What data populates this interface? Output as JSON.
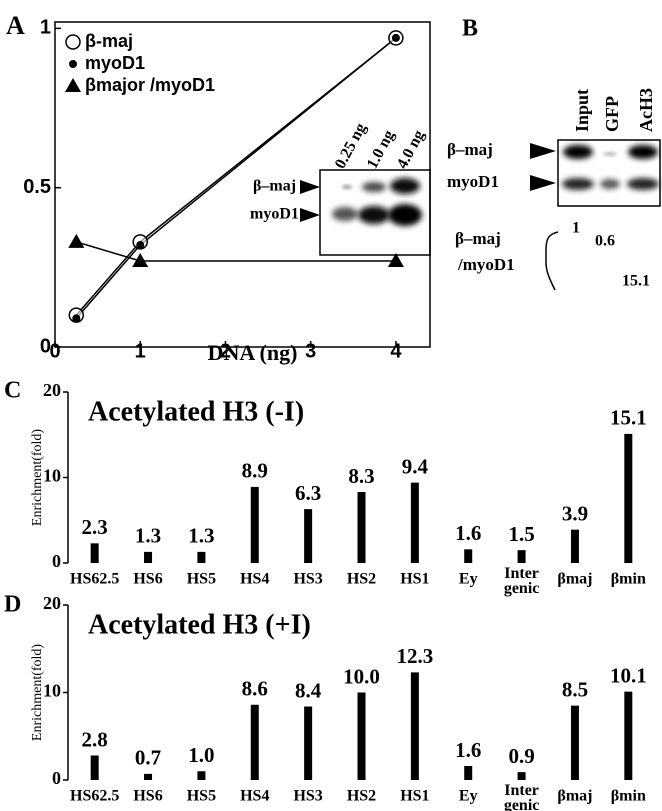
{
  "panel_labels": [
    "A",
    "B",
    "C",
    "D"
  ],
  "inset_blot": {
    "lanes": [
      "0.25 ng",
      "1.0 ng",
      "4.0 ng"
    ],
    "rows": [
      "β–maj",
      "myoD1"
    ]
  },
  "blot_b": {
    "lanes": [
      "Input",
      "GFP",
      "AcH3"
    ],
    "rows": [
      "β–maj",
      "myoD1"
    ],
    "ratio_label": [
      "β–maj",
      "/myoD1"
    ],
    "ratios": [
      1,
      0.6,
      15.1
    ]
  },
  "chart_data": [
    {
      "type": "line",
      "xlabel": "DNA (ng)",
      "x": [
        0.25,
        1,
        4
      ],
      "series": [
        {
          "name": "β-maj",
          "color": "#000000",
          "marker": "open-circle",
          "values": [
            0.1,
            0.33,
            0.97
          ]
        },
        {
          "name": "myoD1",
          "color": "#000000",
          "marker": "dot",
          "values": [
            0.09,
            0.32,
            0.97
          ]
        },
        {
          "name": "βmajor /myoD1",
          "color": "#000000",
          "marker": "triangle",
          "values": [
            0.33,
            0.27,
            0.27
          ]
        }
      ],
      "xlim": [
        0,
        4.4
      ],
      "ylim": [
        0,
        1.02
      ],
      "xticks": [
        0,
        1,
        2,
        3,
        4
      ],
      "yticks": [
        0,
        0.5,
        1
      ],
      "legend": "upper-left"
    },
    {
      "type": "bar",
      "title": "Acetylated H3 (-I)",
      "ylabel": "Enrichment(fold)",
      "categories": [
        "HS62.5",
        "HS6",
        "HS5",
        "HS4",
        "HS3",
        "HS2",
        "HS1",
        "Ey",
        "Inter genic",
        "βmaj",
        "βmin"
      ],
      "values": [
        2.3,
        1.3,
        1.3,
        8.9,
        6.3,
        8.3,
        9.4,
        1.6,
        1.5,
        3.9,
        15.1
      ],
      "color": "#000000",
      "ylim": [
        0,
        20
      ],
      "yticks": [
        0,
        10,
        20
      ]
    },
    {
      "type": "bar",
      "title": "Acetylated H3 (+I)",
      "ylabel": "Enrichment(fold)",
      "categories": [
        "HS62.5",
        "HS6",
        "HS5",
        "HS4",
        "HS3",
        "HS2",
        "HS1",
        "Ey",
        "Inter genic",
        "βmaj",
        "βmin"
      ],
      "values": [
        2.8,
        0.7,
        1.0,
        8.6,
        8.4,
        10.0,
        12.3,
        1.6,
        0.9,
        8.5,
        10.1
      ],
      "value_labels": [
        "2.8",
        "0.7",
        "1.0",
        "8.6",
        "8.4",
        "10.0",
        "12.3",
        "1.6",
        "0.9",
        "8.5",
        "10.1"
      ],
      "color": "#000000",
      "ylim": [
        0,
        20
      ],
      "yticks": [
        0,
        10,
        20
      ]
    }
  ]
}
